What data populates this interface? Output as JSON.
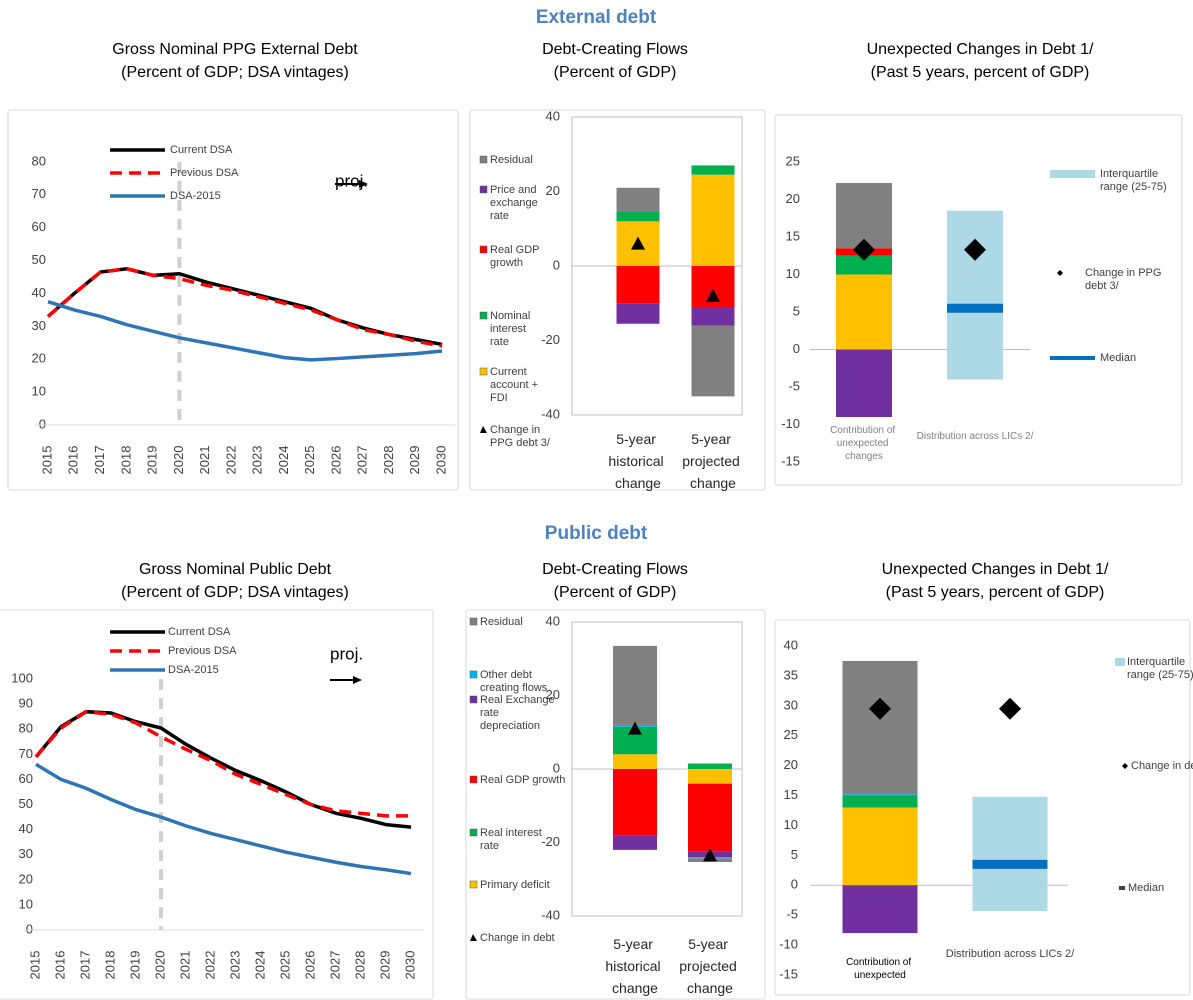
{
  "sections": [
    "External debt",
    "Public debt"
  ],
  "chart_data": [
    {
      "type": "line",
      "title": "Gross Nominal PPG External Debt",
      "subtitle": "(Percent of GDP; DSA vintages)",
      "categories": [
        "2015",
        "2016",
        "2017",
        "2018",
        "2019",
        "2020",
        "2021",
        "2022",
        "2023",
        "2024",
        "2025",
        "2026",
        "2027",
        "2028",
        "2029",
        "2030"
      ],
      "series": [
        {
          "name": "Current DSA",
          "color": "#000000",
          "values": [
            33,
            40,
            46.5,
            47.5,
            45.5,
            46,
            43.5,
            41.5,
            39.5,
            37.5,
            35.5,
            32,
            29.5,
            27.5,
            26,
            24.5
          ]
        },
        {
          "name": "Previous DSA",
          "color": "#ff0000",
          "dash": true,
          "values": [
            33,
            40,
            46.5,
            47.5,
            45.5,
            44.5,
            42.5,
            41,
            39,
            37,
            35,
            32,
            29,
            27.5,
            25.5,
            24
          ]
        },
        {
          "name": "DSA-2015",
          "color": "#2e75b6",
          "values": [
            37.5,
            35,
            33,
            30.5,
            28.5,
            26.5,
            25,
            23.5,
            22,
            20.5,
            19.8,
            20.2,
            20.7,
            21.2,
            21.7,
            22.5
          ]
        }
      ],
      "ylim": [
        0,
        90
      ],
      "yticks": [
        0,
        10,
        20,
        30,
        40,
        50,
        60,
        70,
        80
      ],
      "annotation": "proj.",
      "projection_start": "2020"
    },
    {
      "type": "stacked_bar",
      "title": "Debt-Creating Flows",
      "subtitle": "(Percent of GDP)",
      "categories": [
        "5-year historical change",
        "5-year projected change"
      ],
      "series": [
        {
          "name": "Current account + FDI",
          "color": "#ffc000",
          "values": [
            12,
            24.5
          ]
        },
        {
          "name": "Nominal interest rate",
          "color": "#00b050",
          "values": [
            2.5,
            2.5
          ]
        },
        {
          "name": "Real GDP growth",
          "color": "#ff0000",
          "values": [
            -10,
            -11
          ]
        },
        {
          "name": "Price and exchange rate",
          "color": "#7030a0",
          "values": [
            -5.5,
            -5
          ]
        },
        {
          "name": "Residual",
          "color": "#808080",
          "values": [
            6.5,
            -19
          ]
        }
      ],
      "marker": {
        "name": "Change in PPG debt 3/",
        "values": [
          6,
          -8
        ]
      },
      "ylim": [
        -40,
        40
      ],
      "yticks": [
        -40,
        -20,
        0,
        20,
        40
      ]
    },
    {
      "type": "unexpected",
      "title": "Unexpected Changes in Debt 1/",
      "subtitle": "(Past 5 years, percent of GDP)",
      "categories": [
        "Contribution of unexpected changes",
        "Distribution across LICs 2/"
      ],
      "segments": [
        {
          "color": "#ffc000",
          "value": 10
        },
        {
          "color": "#00b050",
          "value": 2.5
        },
        {
          "color": "#ff0000",
          "value": 1
        },
        {
          "color": "#808080",
          "value": 8.7
        },
        {
          "color": "#7030a0",
          "value": -9
        }
      ],
      "interquartile": {
        "name": "Interquartile range (25-75)",
        "color": "#add8e6",
        "values": [
          -4,
          18.5
        ]
      },
      "change": {
        "name": "Change in PPG debt 3/",
        "values": [
          13.3,
          13.3
        ]
      },
      "median": {
        "name": "Median",
        "color": "#0070c0",
        "value": 5.5
      },
      "ylim": [
        -15,
        25
      ],
      "yticks": [
        -15,
        -10,
        -5,
        0,
        5,
        10,
        15,
        20,
        25
      ]
    },
    {
      "type": "line",
      "title": "Gross Nominal Public Debt",
      "subtitle": "(Percent of GDP; DSA vintages)",
      "categories": [
        "2015",
        "2016",
        "2017",
        "2018",
        "2019",
        "2020",
        "2021",
        "2022",
        "2023",
        "2024",
        "2025",
        "2026",
        "2027",
        "2028",
        "2029",
        "2030"
      ],
      "series": [
        {
          "name": "Current DSA",
          "color": "#000000",
          "values": [
            69,
            81,
            87,
            86.5,
            83,
            80.5,
            74,
            68.5,
            63.5,
            59.5,
            55,
            50,
            46.5,
            44.5,
            42,
            41
          ]
        },
        {
          "name": "Previous DSA",
          "color": "#ff0000",
          "dash": true,
          "values": [
            69,
            80.5,
            87,
            86,
            82.5,
            77,
            72,
            67.5,
            62,
            58,
            54,
            50,
            47.5,
            46.5,
            45.5,
            45.5
          ]
        },
        {
          "name": "DSA-2015",
          "color": "#2e75b6",
          "values": [
            66,
            60,
            56.5,
            52,
            48,
            45,
            41.5,
            38.5,
            36,
            33.5,
            31,
            29,
            27,
            25.3,
            24,
            22.5
          ]
        }
      ],
      "ylim": [
        0,
        110
      ],
      "yticks": [
        0,
        10,
        20,
        30,
        40,
        50,
        60,
        70,
        80,
        90,
        100
      ],
      "annotation": "proj.",
      "projection_start": "2020"
    },
    {
      "type": "stacked_bar",
      "title": "Debt-Creating Flows",
      "subtitle": "(Percent of GDP)",
      "categories": [
        "5-year historical change",
        "5-year projected change"
      ],
      "series": [
        {
          "name": "Primary deficit",
          "color": "#ffc000",
          "values": [
            4,
            -4
          ]
        },
        {
          "name": "Real interest rate",
          "color": "#00b050",
          "values": [
            7.5,
            1.5
          ]
        },
        {
          "name": "Real GDP growth",
          "color": "#ff0000",
          "values": [
            -18,
            -18.5
          ]
        },
        {
          "name": "Real Exchange rate depreciation",
          "color": "#7030a0",
          "values": [
            -4,
            -1.5
          ]
        },
        {
          "name": "Other debt creating flows",
          "color": "#00b0f0",
          "values": [
            0.5,
            -0.3
          ]
        },
        {
          "name": "Residual",
          "color": "#808080",
          "values": [
            21.5,
            -1
          ]
        }
      ],
      "marker": {
        "name": "Change in debt",
        "values": [
          11,
          -23.5
        ]
      },
      "ylim": [
        -40,
        40
      ],
      "yticks": [
        -40,
        -20,
        0,
        20,
        40
      ]
    },
    {
      "type": "unexpected",
      "title": "Unexpected Changes in Debt 1/",
      "subtitle": "(Past 5 years, percent of GDP)",
      "categories": [
        "Contribution of unexpected",
        "Distribution across LICs 2/"
      ],
      "segments": [
        {
          "color": "#ffc000",
          "value": 13
        },
        {
          "color": "#00b050",
          "value": 2
        },
        {
          "color": "#00b0f0",
          "value": 0.2
        },
        {
          "color": "#808080",
          "value": 22.3
        },
        {
          "color": "#7030a0",
          "value": -8
        }
      ],
      "interquartile": {
        "name": "Interquartile range (25-75)",
        "color": "#add8e6",
        "values": [
          -4.3,
          14.8
        ]
      },
      "change": {
        "name": "Change in debt",
        "values": [
          29.5,
          29.5
        ]
      },
      "median": {
        "name": "Median",
        "color": "#0070c0",
        "value": 3.5
      },
      "ylim": [
        -15,
        40
      ],
      "yticks": [
        -15,
        -10,
        -5,
        0,
        5,
        10,
        15,
        20,
        25,
        30,
        35,
        40
      ]
    }
  ]
}
